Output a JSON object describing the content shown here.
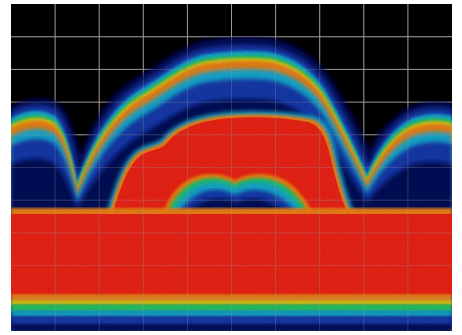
{
  "display": {
    "background_color": "#000000",
    "grid_color": "#9a9a9a",
    "grid_rows": 10,
    "grid_columns": 10,
    "palette": {
      "hot": "#ff2a1a",
      "warm": "#ff8c1a",
      "yellow": "#f2d21a",
      "green": "#2fd36a",
      "cyan": "#1fb7e0",
      "blue": "#1d3fb8",
      "navy": "#0b1660"
    }
  }
}
